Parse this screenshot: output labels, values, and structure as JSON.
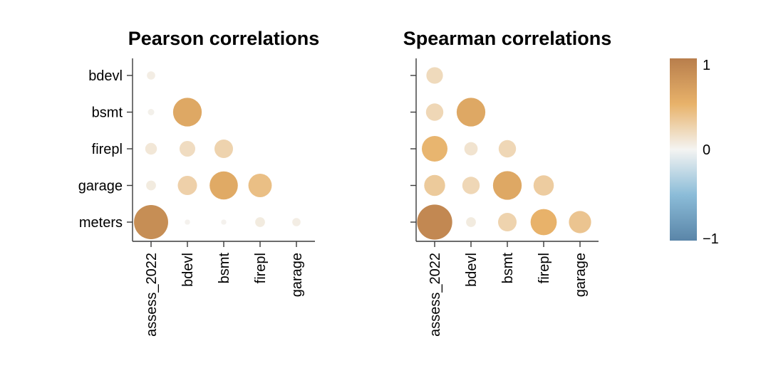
{
  "chart_data": [
    {
      "type": "heatmap",
      "title": "Pearson correlations",
      "x_categories": [
        "assess_2022",
        "bdevl",
        "bsmt",
        "firepl",
        "garage"
      ],
      "y_categories": [
        "bdevl",
        "bsmt",
        "firepl",
        "garage",
        "meters"
      ],
      "cells": [
        {
          "x": "assess_2022",
          "y": "bdevl",
          "value": 0.05
        },
        {
          "x": "assess_2022",
          "y": "bsmt",
          "value": 0.03
        },
        {
          "x": "bdevl",
          "y": "bsmt",
          "value": 0.6
        },
        {
          "x": "assess_2022",
          "y": "firepl",
          "value": 0.1
        },
        {
          "x": "bdevl",
          "y": "firepl",
          "value": 0.18
        },
        {
          "x": "bsmt",
          "y": "firepl",
          "value": 0.25
        },
        {
          "x": "assess_2022",
          "y": "garage",
          "value": 0.07
        },
        {
          "x": "bdevl",
          "y": "garage",
          "value": 0.27
        },
        {
          "x": "bsmt",
          "y": "garage",
          "value": 0.58
        },
        {
          "x": "firepl",
          "y": "garage",
          "value": 0.4
        },
        {
          "x": "assess_2022",
          "y": "meters",
          "value": 0.85
        },
        {
          "x": "bdevl",
          "y": "meters",
          "value": 0.02
        },
        {
          "x": "bsmt",
          "y": "meters",
          "value": 0.02
        },
        {
          "x": "firepl",
          "y": "meters",
          "value": 0.07
        },
        {
          "x": "garage",
          "y": "meters",
          "value": 0.05
        }
      ]
    },
    {
      "type": "heatmap",
      "title": "Spearman correlations",
      "x_categories": [
        "assess_2022",
        "bdevl",
        "bsmt",
        "firepl",
        "garage"
      ],
      "y_categories": [
        "bdevl",
        "bsmt",
        "firepl",
        "garage",
        "meters"
      ],
      "cells": [
        {
          "x": "assess_2022",
          "y": "bdevl",
          "value": 0.2
        },
        {
          "x": "assess_2022",
          "y": "bsmt",
          "value": 0.22
        },
        {
          "x": "bdevl",
          "y": "bsmt",
          "value": 0.6
        },
        {
          "x": "assess_2022",
          "y": "firepl",
          "value": 0.48
        },
        {
          "x": "bdevl",
          "y": "firepl",
          "value": 0.13
        },
        {
          "x": "bsmt",
          "y": "firepl",
          "value": 0.22
        },
        {
          "x": "assess_2022",
          "y": "garage",
          "value": 0.32
        },
        {
          "x": "bdevl",
          "y": "garage",
          "value": 0.22
        },
        {
          "x": "bsmt",
          "y": "garage",
          "value": 0.6
        },
        {
          "x": "firepl",
          "y": "garage",
          "value": 0.3
        },
        {
          "x": "assess_2022",
          "y": "meters",
          "value": 0.9
        },
        {
          "x": "bdevl",
          "y": "meters",
          "value": 0.07
        },
        {
          "x": "bsmt",
          "y": "meters",
          "value": 0.25
        },
        {
          "x": "firepl",
          "y": "meters",
          "value": 0.5
        },
        {
          "x": "garage",
          "y": "meters",
          "value": 0.36
        }
      ]
    }
  ],
  "legend": {
    "type": "colorbar",
    "range": [
      -1,
      1
    ],
    "ticks": [
      {
        "value": 1,
        "label": "1"
      },
      {
        "value": 0,
        "label": "0"
      },
      {
        "value": -1,
        "label": "−1"
      }
    ],
    "colors": {
      "positive_max": "#b87e4c",
      "positive_mid": "#e8b26a",
      "neutral": "#f4f4f2",
      "negative_mid": "#8bbcd8",
      "negative_max": "#5a85a8"
    }
  }
}
